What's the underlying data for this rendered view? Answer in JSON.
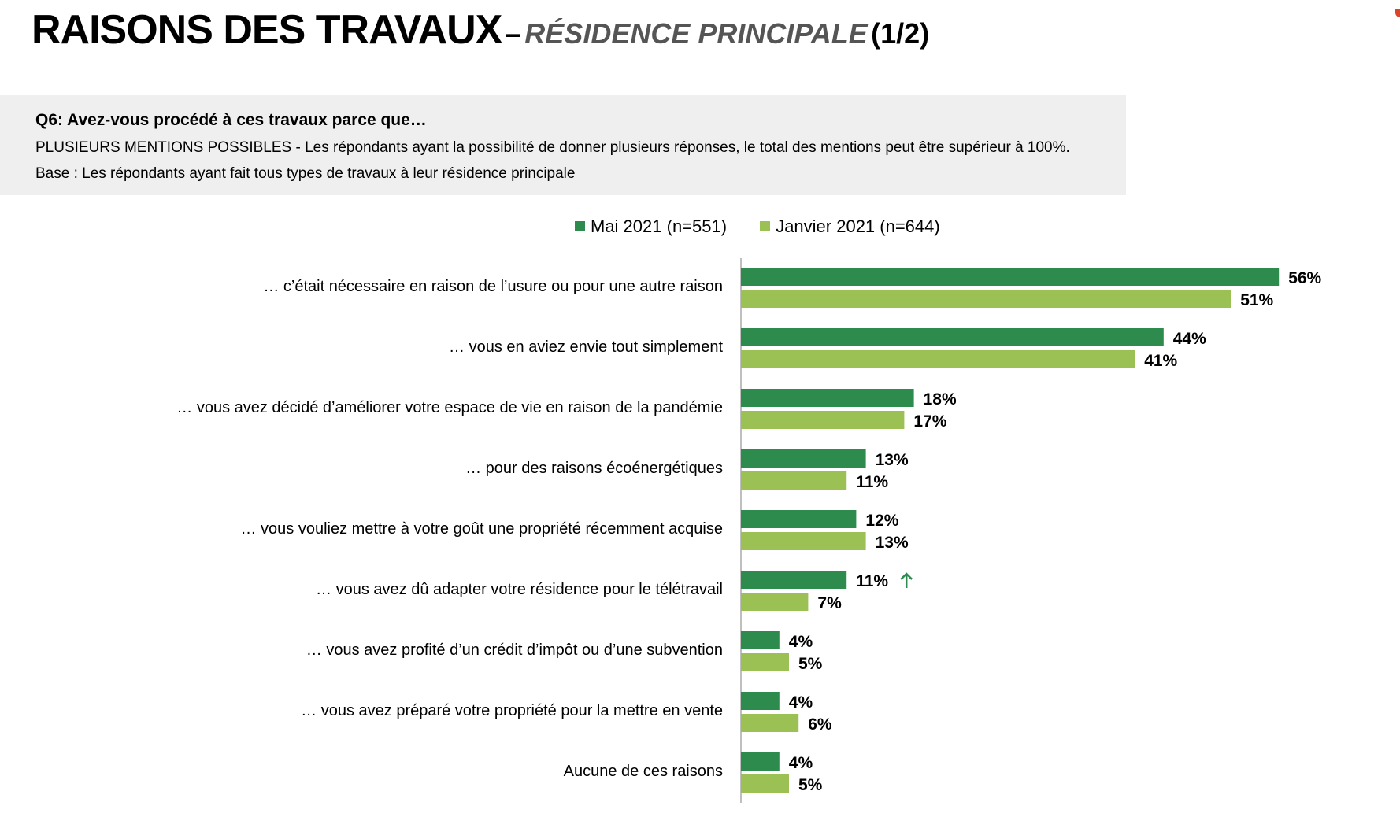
{
  "header": {
    "title": "RAISONS DES TRAVAUX",
    "separator": "–",
    "subtitle": "RÉSIDENCE PRINCIPALE",
    "part": "(1/2)"
  },
  "question": {
    "text": "Q6: Avez-vous procédé à ces travaux parce que…",
    "note": "PLUSIEURS MENTIONS POSSIBLES - Les répondants ayant la possibilité de donner plusieurs réponses, le total des mentions peut être supérieur à 100%.",
    "base": "Base : Les répondants ayant fait tous types de travaux à leur résidence principale"
  },
  "colors": {
    "series_1": "#2e8b4e",
    "series_2": "#9bc053",
    "up_arrow": "#2e8b4e",
    "accent": "#d9452b"
  },
  "chart_data": {
    "type": "bar",
    "orientation": "horizontal",
    "categories": [
      "… c’était nécessaire en raison de l’usure ou pour une autre raison",
      "… vous en aviez envie tout simplement",
      "… vous avez décidé d’améliorer votre espace de vie en raison de la pandémie",
      "… pour des raisons écoénergétiques",
      "… vous vouliez mettre à votre goût une propriété récemment acquise",
      "… vous avez dû adapter votre résidence pour le télétravail",
      "… vous avez profité d’un crédit d’impôt ou d’une subvention",
      "… vous avez préparé votre propriété pour la mettre en vente",
      "Aucune de ces raisons"
    ],
    "series": [
      {
        "name": "Mai 2021 (n=551)",
        "values": [
          56,
          44,
          18,
          13,
          12,
          11,
          4,
          4,
          4
        ]
      },
      {
        "name": "Janvier 2021 (n=644)",
        "values": [
          51,
          41,
          17,
          11,
          13,
          7,
          5,
          6,
          5
        ]
      }
    ],
    "value_suffix": "%",
    "significant_increase": [
      {
        "category_index": 5,
        "series_index": 0,
        "icon": "up-arrow-icon"
      }
    ],
    "legend_position": "top",
    "grid": false
  }
}
